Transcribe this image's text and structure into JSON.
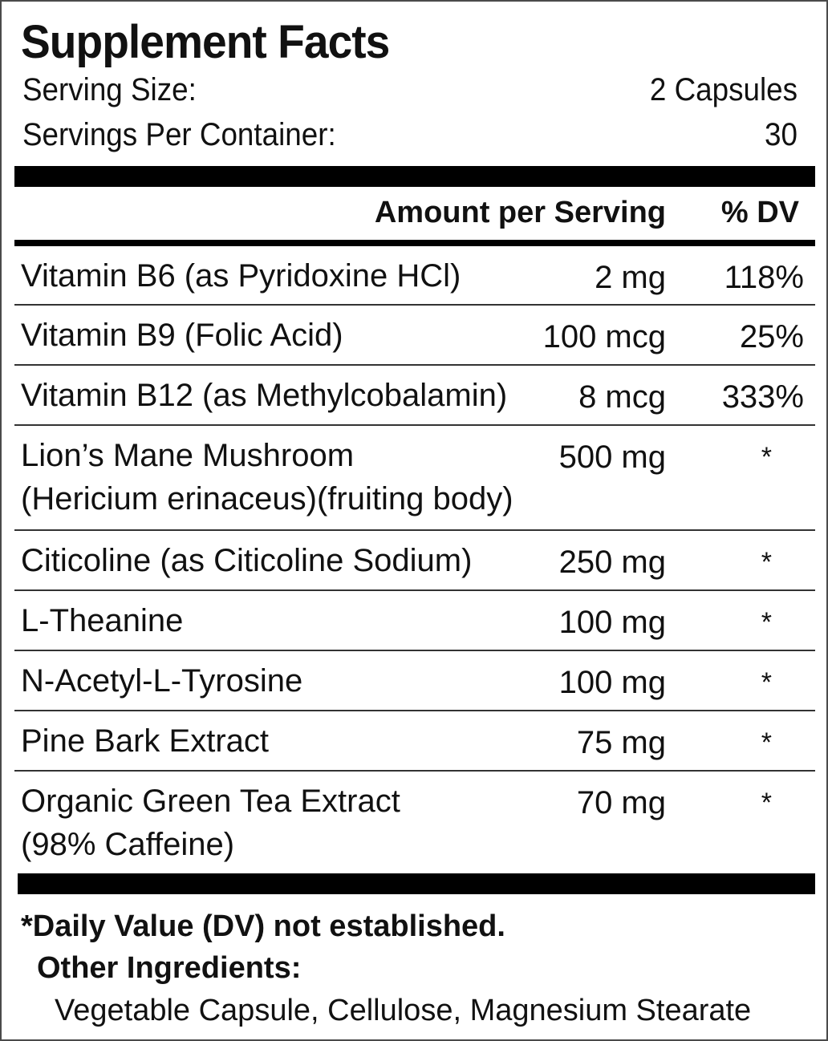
{
  "title": "Supplement Facts",
  "serving": {
    "size_label": "Serving Size:",
    "size_value": "2 Capsules",
    "per_container_label": "Servings Per Container:",
    "per_container_value": "30"
  },
  "table_header": {
    "amount": "Amount per Serving",
    "dv": "% DV"
  },
  "ingredients": [
    {
      "name": [
        "Vitamin B6 (as Pyridoxine HCl)"
      ],
      "amount": "2 mg",
      "dv": "118%"
    },
    {
      "name": [
        "Vitamin B9 (Folic Acid)"
      ],
      "amount": "100 mcg",
      "dv": "25%"
    },
    {
      "name": [
        "Vitamin B12 (as Methylcobalamin)"
      ],
      "amount": "8 mcg",
      "dv": "333%"
    },
    {
      "name": [
        "Lion’s Mane Mushroom",
        "(Hericium erinaceus)(fruiting body)"
      ],
      "amount": "500 mg",
      "dv": "*"
    },
    {
      "name": [
        "Citicoline (as Citicoline Sodium)"
      ],
      "amount": "250 mg",
      "dv": "*"
    },
    {
      "name": [
        "L-Theanine"
      ],
      "amount": "100 mg",
      "dv": "*"
    },
    {
      "name": [
        "N-Acetyl-L-Tyrosine"
      ],
      "amount": "100 mg",
      "dv": "*"
    },
    {
      "name": [
        "Pine Bark Extract"
      ],
      "amount": "75 mg",
      "dv": "*"
    },
    {
      "name": [
        "Organic Green Tea Extract",
        "(98% Caffeine)"
      ],
      "amount": "70 mg",
      "dv": "*"
    }
  ],
  "footnote": "*Daily Value (DV) not established.",
  "other_ingredients": {
    "title": "Other Ingredients:",
    "list": "Vegetable Capsule, Cellulose, Magnesium Stearate"
  }
}
